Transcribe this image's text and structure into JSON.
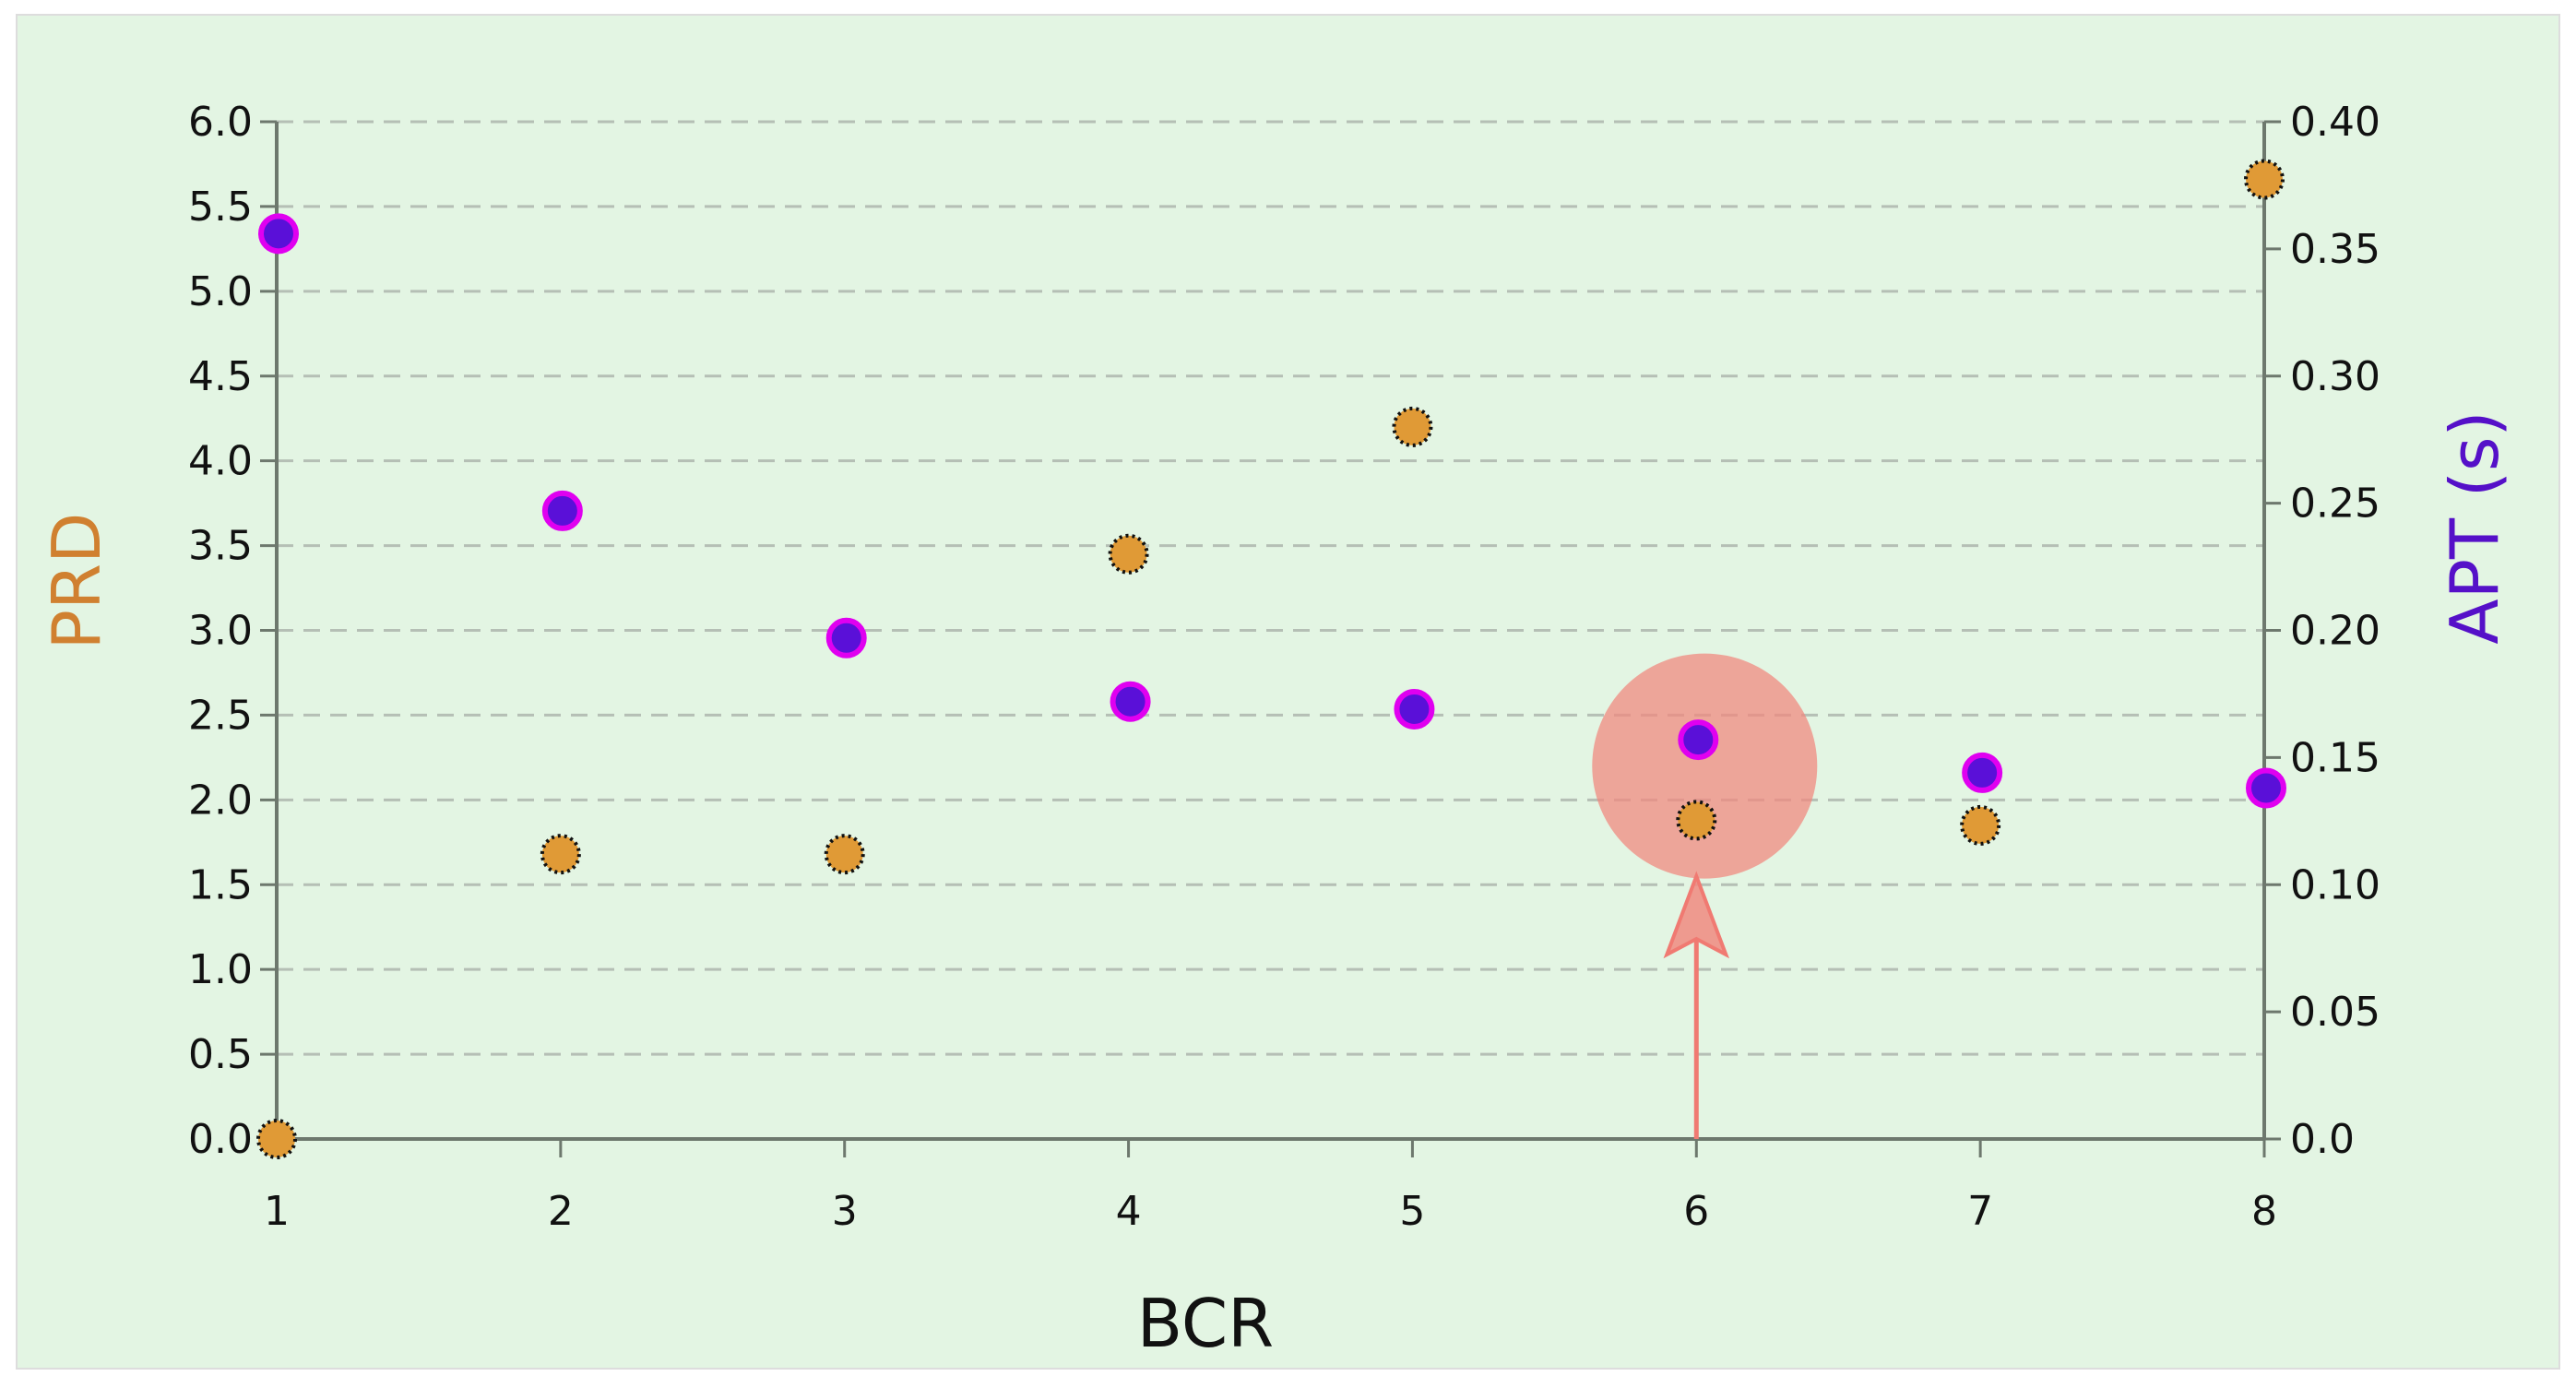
{
  "colors": {
    "background": "#e3f5e3",
    "border": "#dddddd",
    "grid": "#b5bfb5",
    "axis": "#6d786d",
    "prd_fill": "#e09a36",
    "prd_stroke": "#111111",
    "apt_fill": "#5a10d8",
    "apt_stroke": "#e000f0",
    "highlight_circle": "#f08a80",
    "highlight_arrow": "#f07a72",
    "prd_title": "#d08030",
    "apt_title": "#5510c8",
    "bcr_title": "#111111"
  },
  "chart_data": {
    "type": "scatter",
    "title": "",
    "xlabel": "BCR",
    "ylabel": "PRD",
    "y2label": "APT (s)",
    "xlim": [
      1,
      8
    ],
    "ylim": [
      0,
      6
    ],
    "y2lim": [
      0,
      0.4
    ],
    "x_ticks": [
      "1",
      "2",
      "3",
      "4",
      "5",
      "6",
      "7",
      "8"
    ],
    "y_ticks": [
      "0.0",
      "0.5",
      "1.0",
      "1.5",
      "2.0",
      "2.5",
      "3.0",
      "3.5",
      "4.0",
      "4.5",
      "5.0",
      "5.5",
      "6.0"
    ],
    "y2_ticks": [
      "0.0",
      "0.05",
      "0.10",
      "0.15",
      "0.20",
      "0.25",
      "0.30",
      "0.35",
      "0.40"
    ],
    "grid": true,
    "legend": "none",
    "series": [
      {
        "axis": "left",
        "marker": "dotted-orange",
        "x": [
          1,
          2,
          3,
          4,
          5,
          6,
          7,
          8
        ],
        "y": [
          0.0,
          1.68,
          1.68,
          3.45,
          4.2,
          1.88,
          1.85,
          5.66
        ]
      },
      {
        "axis": "right",
        "marker": "purple-magenta",
        "x": [
          1,
          2,
          3,
          4,
          5,
          6,
          7,
          8
        ],
        "y": [
          0.356,
          0.247,
          0.197,
          0.172,
          0.169,
          0.157,
          0.144,
          0.138
        ]
      }
    ],
    "annotation": {
      "type": "circle-with-arrow",
      "x": 6,
      "y": 2.2,
      "arrow_from_y": 0,
      "arrow_to_y": 1.55
    }
  }
}
